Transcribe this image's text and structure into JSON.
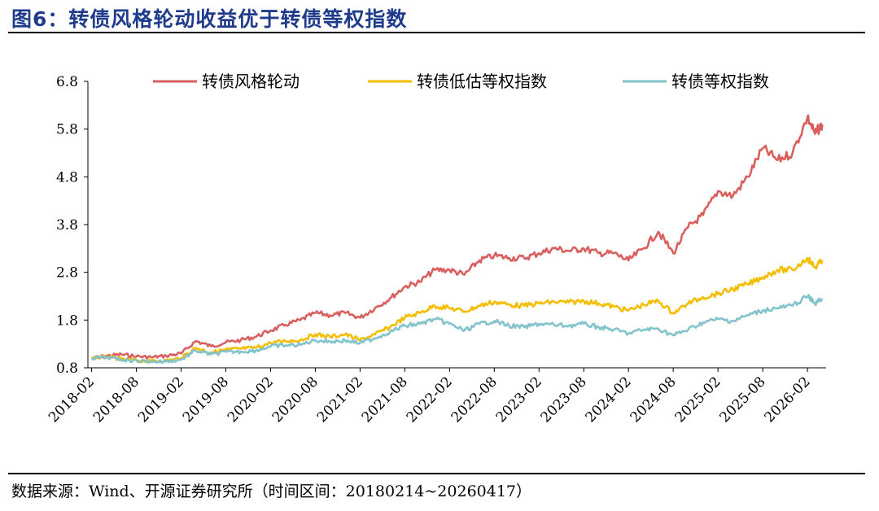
{
  "header": {
    "title": "图6：转债风格轮动收益优于转债等权指数"
  },
  "footer": {
    "source": "数据来源：Wind、开源证券研究所（时间区间：20180214~20260417）"
  },
  "colors": {
    "series_red": "#d9605f",
    "series_yellow": "#f5bd00",
    "series_teal": "#82c3cc",
    "title_blue": "#1f3b8c"
  },
  "chart_data": {
    "type": "line",
    "title": "",
    "xlabel": "",
    "ylabel": "",
    "ylim": [
      0.8,
      6.8
    ],
    "yticks": [
      "6.8",
      "5.8",
      "4.8",
      "3.8",
      "2.8",
      "1.8",
      "0.8"
    ],
    "xlim": [
      "2018-02",
      "2026-04"
    ],
    "xticks": [
      "2018-02",
      "2018-08",
      "2019-02",
      "2019-08",
      "2020-02",
      "2020-08",
      "2021-02",
      "2021-08",
      "2022-02",
      "2022-08",
      "2023-02",
      "2023-08",
      "2024-02",
      "2024-08",
      "2025-02",
      "2025-08",
      "2026-02"
    ],
    "grid": false,
    "legend": "top",
    "series": [
      {
        "name": "转债风格轮动",
        "color": "#d9605f",
        "points": [
          [
            "2018-02",
            1.0
          ],
          [
            "2018-04",
            1.05
          ],
          [
            "2018-06",
            1.08
          ],
          [
            "2018-08",
            1.04
          ],
          [
            "2018-10",
            1.02
          ],
          [
            "2018-12",
            1.05
          ],
          [
            "2019-02",
            1.1
          ],
          [
            "2019-04",
            1.36
          ],
          [
            "2019-06",
            1.25
          ],
          [
            "2019-08",
            1.33
          ],
          [
            "2019-10",
            1.38
          ],
          [
            "2019-12",
            1.45
          ],
          [
            "2020-02",
            1.58
          ],
          [
            "2020-04",
            1.7
          ],
          [
            "2020-06",
            1.8
          ],
          [
            "2020-08",
            1.95
          ],
          [
            "2020-10",
            1.9
          ],
          [
            "2020-12",
            1.95
          ],
          [
            "2021-02",
            1.85
          ],
          [
            "2021-04",
            2.05
          ],
          [
            "2021-06",
            2.25
          ],
          [
            "2021-08",
            2.5
          ],
          [
            "2021-10",
            2.6
          ],
          [
            "2021-12",
            2.85
          ],
          [
            "2022-02",
            2.85
          ],
          [
            "2022-04",
            2.75
          ],
          [
            "2022-06",
            3.05
          ],
          [
            "2022-08",
            3.15
          ],
          [
            "2022-10",
            3.1
          ],
          [
            "2022-12",
            3.1
          ],
          [
            "2023-02",
            3.2
          ],
          [
            "2023-04",
            3.3
          ],
          [
            "2023-06",
            3.25
          ],
          [
            "2023-08",
            3.3
          ],
          [
            "2023-10",
            3.2
          ],
          [
            "2023-12",
            3.2
          ],
          [
            "2024-02",
            3.05
          ],
          [
            "2024-04",
            3.3
          ],
          [
            "2024-06",
            3.65
          ],
          [
            "2024-08",
            3.2
          ],
          [
            "2024-10",
            3.75
          ],
          [
            "2024-12",
            4.0
          ],
          [
            "2025-02",
            4.5
          ],
          [
            "2025-04",
            4.4
          ],
          [
            "2025-06",
            4.8
          ],
          [
            "2025-08",
            5.4
          ],
          [
            "2025-10",
            5.15
          ],
          [
            "2025-12",
            5.3
          ],
          [
            "2026-02",
            6.05
          ],
          [
            "2026-03",
            5.7
          ],
          [
            "2026-04",
            5.9
          ]
        ]
      },
      {
        "name": "转债低估等权指数",
        "color": "#f5bd00",
        "points": [
          [
            "2018-02",
            1.0
          ],
          [
            "2018-04",
            1.03
          ],
          [
            "2018-06",
            0.98
          ],
          [
            "2018-08",
            0.96
          ],
          [
            "2018-10",
            0.94
          ],
          [
            "2018-12",
            0.95
          ],
          [
            "2019-02",
            1.0
          ],
          [
            "2019-04",
            1.22
          ],
          [
            "2019-06",
            1.12
          ],
          [
            "2019-08",
            1.18
          ],
          [
            "2019-10",
            1.2
          ],
          [
            "2019-12",
            1.22
          ],
          [
            "2020-02",
            1.32
          ],
          [
            "2020-04",
            1.36
          ],
          [
            "2020-06",
            1.38
          ],
          [
            "2020-08",
            1.5
          ],
          [
            "2020-10",
            1.45
          ],
          [
            "2020-12",
            1.5
          ],
          [
            "2021-02",
            1.38
          ],
          [
            "2021-04",
            1.5
          ],
          [
            "2021-06",
            1.65
          ],
          [
            "2021-08",
            1.85
          ],
          [
            "2021-10",
            1.95
          ],
          [
            "2021-12",
            2.1
          ],
          [
            "2022-02",
            2.05
          ],
          [
            "2022-04",
            1.98
          ],
          [
            "2022-06",
            2.1
          ],
          [
            "2022-08",
            2.18
          ],
          [
            "2022-10",
            2.12
          ],
          [
            "2022-12",
            2.1
          ],
          [
            "2023-02",
            2.15
          ],
          [
            "2023-04",
            2.18
          ],
          [
            "2023-06",
            2.17
          ],
          [
            "2023-08",
            2.2
          ],
          [
            "2023-10",
            2.15
          ],
          [
            "2023-12",
            2.08
          ],
          [
            "2024-02",
            2.0
          ],
          [
            "2024-04",
            2.12
          ],
          [
            "2024-06",
            2.2
          ],
          [
            "2024-08",
            1.95
          ],
          [
            "2024-10",
            2.15
          ],
          [
            "2024-12",
            2.28
          ],
          [
            "2025-02",
            2.35
          ],
          [
            "2025-04",
            2.45
          ],
          [
            "2025-06",
            2.55
          ],
          [
            "2025-08",
            2.7
          ],
          [
            "2025-10",
            2.85
          ],
          [
            "2025-12",
            2.85
          ],
          [
            "2026-02",
            3.1
          ],
          [
            "2026-03",
            2.9
          ],
          [
            "2026-04",
            3.05
          ]
        ]
      },
      {
        "name": "转债等权指数",
        "color": "#82c3cc",
        "points": [
          [
            "2018-02",
            1.0
          ],
          [
            "2018-04",
            1.02
          ],
          [
            "2018-06",
            0.97
          ],
          [
            "2018-08",
            0.95
          ],
          [
            "2018-10",
            0.93
          ],
          [
            "2018-12",
            0.93
          ],
          [
            "2019-02",
            0.97
          ],
          [
            "2019-04",
            1.16
          ],
          [
            "2019-06",
            1.08
          ],
          [
            "2019-08",
            1.13
          ],
          [
            "2019-10",
            1.14
          ],
          [
            "2019-12",
            1.16
          ],
          [
            "2020-02",
            1.25
          ],
          [
            "2020-04",
            1.27
          ],
          [
            "2020-06",
            1.28
          ],
          [
            "2020-08",
            1.38
          ],
          [
            "2020-10",
            1.35
          ],
          [
            "2020-12",
            1.37
          ],
          [
            "2021-02",
            1.32
          ],
          [
            "2021-04",
            1.42
          ],
          [
            "2021-06",
            1.55
          ],
          [
            "2021-08",
            1.68
          ],
          [
            "2021-10",
            1.72
          ],
          [
            "2021-12",
            1.82
          ],
          [
            "2022-02",
            1.72
          ],
          [
            "2022-04",
            1.58
          ],
          [
            "2022-06",
            1.72
          ],
          [
            "2022-08",
            1.78
          ],
          [
            "2022-10",
            1.68
          ],
          [
            "2022-12",
            1.65
          ],
          [
            "2023-02",
            1.72
          ],
          [
            "2023-04",
            1.7
          ],
          [
            "2023-06",
            1.68
          ],
          [
            "2023-08",
            1.72
          ],
          [
            "2023-10",
            1.65
          ],
          [
            "2023-12",
            1.6
          ],
          [
            "2024-02",
            1.52
          ],
          [
            "2024-04",
            1.6
          ],
          [
            "2024-06",
            1.62
          ],
          [
            "2024-08",
            1.48
          ],
          [
            "2024-10",
            1.6
          ],
          [
            "2024-12",
            1.75
          ],
          [
            "2025-02",
            1.82
          ],
          [
            "2025-04",
            1.78
          ],
          [
            "2025-06",
            1.9
          ],
          [
            "2025-08",
            2.0
          ],
          [
            "2025-10",
            2.05
          ],
          [
            "2025-12",
            2.1
          ],
          [
            "2026-02",
            2.3
          ],
          [
            "2026-03",
            2.15
          ],
          [
            "2026-04",
            2.25
          ]
        ]
      }
    ]
  }
}
